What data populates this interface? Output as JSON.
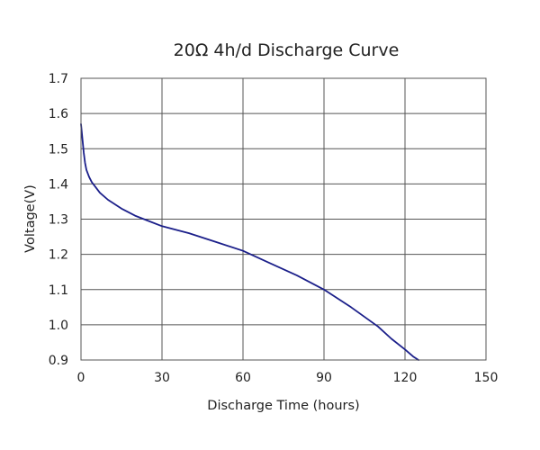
{
  "chart_data": {
    "type": "line",
    "title": "20Ω 4h/d Discharge Curve",
    "xlabel": "Discharge Time (hours)",
    "ylabel": "Voltage(V)",
    "xlim": [
      0,
      150
    ],
    "ylim": [
      0.9,
      1.7
    ],
    "xticks": [
      0,
      30,
      60,
      90,
      120,
      150
    ],
    "yticks": [
      0.9,
      1.0,
      1.1,
      1.2,
      1.3,
      1.4,
      1.5,
      1.6,
      1.7
    ],
    "xtick_labels": [
      "0",
      "30",
      "60",
      "90",
      "120",
      "150"
    ],
    "ytick_labels": [
      "0.9",
      "1.0",
      "1.1",
      "1.2",
      "1.3",
      "1.4",
      "1.5",
      "1.6",
      "1.7"
    ],
    "grid": true,
    "line_color": "#1b1f8a",
    "series": [
      {
        "x": [
          0,
          0.5,
          1,
          1.5,
          2,
          3,
          4,
          5,
          7,
          10,
          15,
          20,
          25,
          30,
          40,
          50,
          60,
          70,
          80,
          90,
          100,
          110,
          115,
          120,
          123,
          125
        ],
        "y": [
          1.57,
          1.53,
          1.49,
          1.46,
          1.44,
          1.42,
          1.405,
          1.395,
          1.375,
          1.355,
          1.33,
          1.31,
          1.295,
          1.28,
          1.26,
          1.235,
          1.21,
          1.175,
          1.14,
          1.1,
          1.05,
          0.995,
          0.96,
          0.93,
          0.91,
          0.9
        ]
      }
    ]
  }
}
